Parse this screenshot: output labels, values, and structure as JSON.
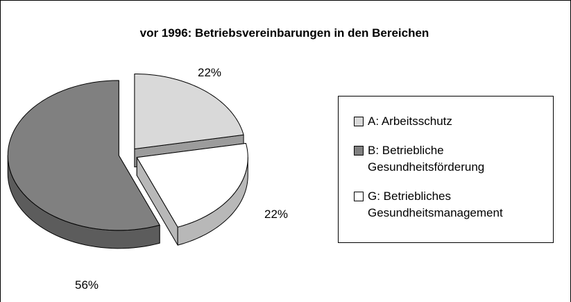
{
  "chart_data": {
    "type": "pie3d",
    "title": "vor 1996: Betriebsvereinbarungen in den Bereichen",
    "categories": [
      "A: Arbeitsschutz",
      "B: Betriebliche Gesundheitsförderung",
      "G: Betriebliches Gesundheitsmanagement"
    ],
    "values": [
      22,
      56,
      22
    ],
    "value_labels": [
      "22%",
      "56%",
      "22%"
    ],
    "colors": [
      "#d9d9d9",
      "#808080",
      "#ffffff"
    ],
    "legend": "right"
  }
}
